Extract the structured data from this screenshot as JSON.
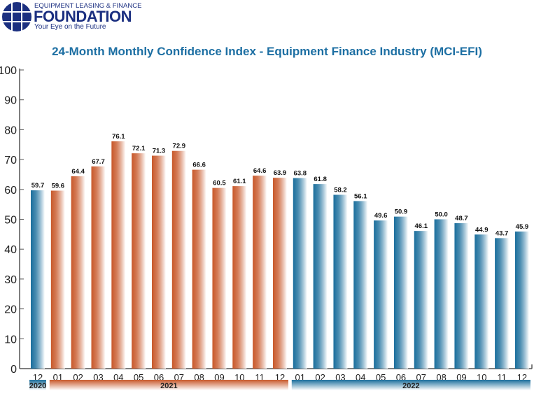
{
  "logo": {
    "line1": "EQUIPMENT LEASING & FINANCE",
    "line2": "FOUNDATION",
    "line3": "Your Eye on the Future"
  },
  "chart_data": {
    "type": "bar",
    "title": "24-Month Monthly Confidence Index - Equipment Finance Industry (MCI-EFI)",
    "categories": [
      "12",
      "01",
      "02",
      "03",
      "04",
      "05",
      "06",
      "07",
      "08",
      "09",
      "10",
      "11",
      "12",
      "01",
      "02",
      "03",
      "04",
      "05",
      "06",
      "07",
      "08",
      "09",
      "10",
      "11",
      "12"
    ],
    "years": [
      {
        "label": "2020",
        "start": 0,
        "end": 0,
        "color": "#1a6e9c"
      },
      {
        "label": "2021",
        "start": 1,
        "end": 12,
        "color": "#c8582a"
      },
      {
        "label": "2022",
        "start": 13,
        "end": 24,
        "color": "#1a6e9c"
      }
    ],
    "values": [
      59.7,
      59.6,
      64.4,
      67.7,
      76.1,
      72.1,
      71.3,
      72.9,
      66.6,
      60.5,
      61.1,
      64.6,
      63.9,
      63.8,
      61.8,
      58.2,
      56.1,
      49.6,
      50.9,
      46.1,
      50.0,
      48.7,
      44.9,
      43.7,
      45.9
    ],
    "value_labels": [
      "59.7",
      "59.6",
      "64.4",
      "67.7",
      "76.1",
      "72.1",
      "71.3",
      "72.9",
      "66.6",
      "60.5",
      "61.1",
      "64.6",
      "63.9",
      "63.8",
      "61.8",
      "58.2",
      "56.1",
      "49.6",
      "50.9",
      "46.1",
      "50.0",
      "48.7",
      "44.9",
      "43.7",
      "45.9"
    ],
    "ylim": [
      0,
      100
    ],
    "yticks": [
      0,
      10,
      20,
      30,
      40,
      50,
      60,
      70,
      80,
      90,
      100
    ],
    "grid": false,
    "colors": {
      "2020": "#1a6e9c",
      "2021": "#c8582a",
      "2022": "#1a6e9c",
      "title": "#1d6fa3"
    }
  }
}
